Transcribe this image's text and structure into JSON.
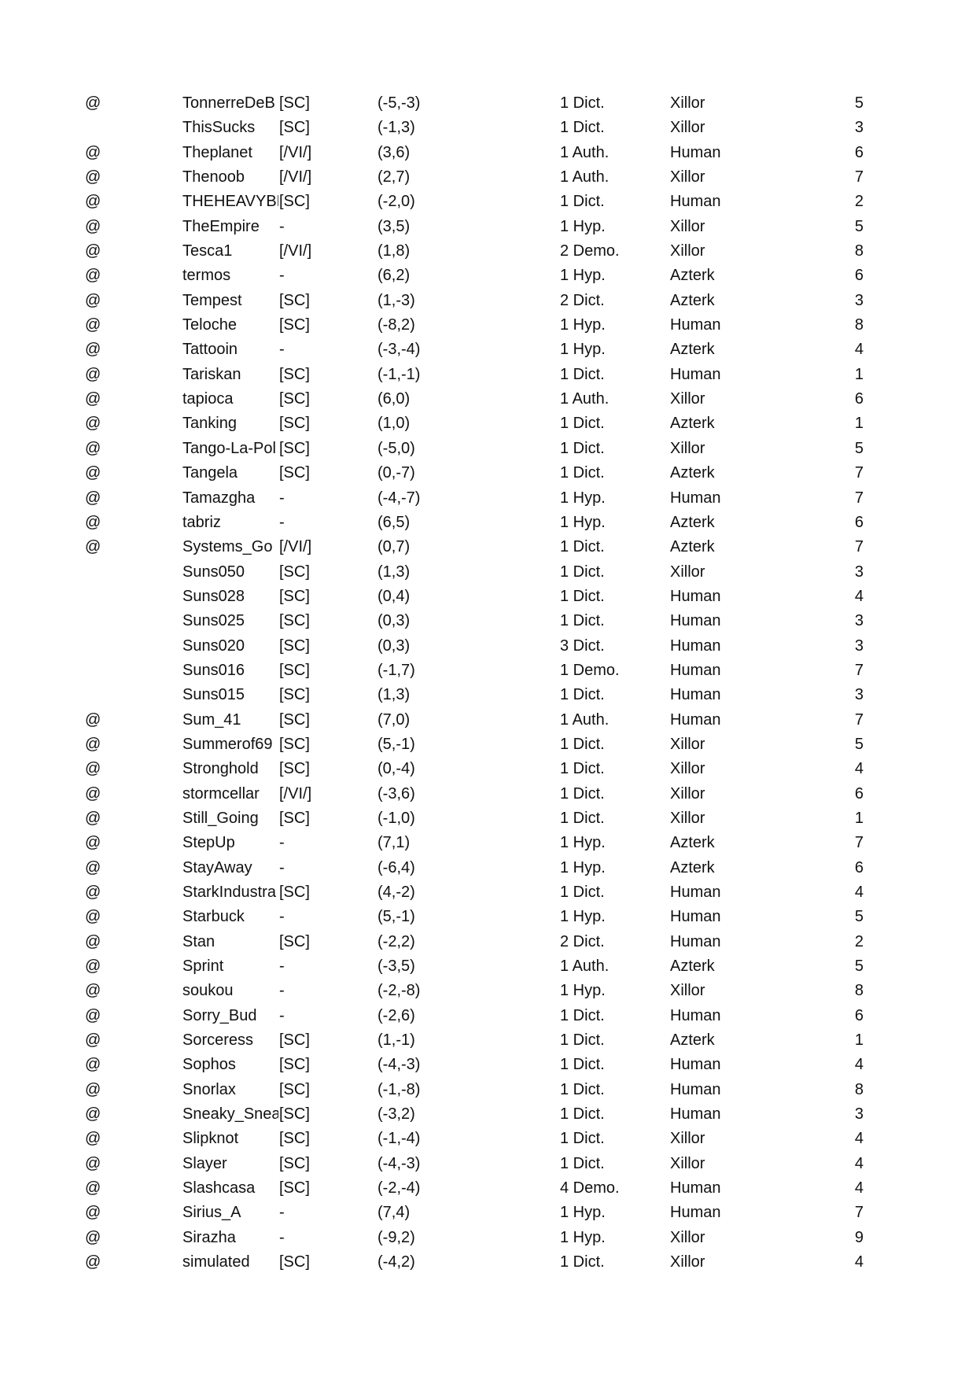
{
  "rows": [
    {
      "mark": "@",
      "name": "TonnerreDeB",
      "tag": "[SC]",
      "coord": "(-5,-3)",
      "count": "1 Dict.",
      "race": "Xillor",
      "num": "5"
    },
    {
      "mark": "",
      "name": "ThisSucks",
      "tag": "[SC]",
      "coord": "(-1,3)",
      "count": "1 Dict.",
      "race": "Xillor",
      "num": "3"
    },
    {
      "mark": "@",
      "name": "Theplanet",
      "tag": "[/VI/]",
      "coord": "(3,6)",
      "count": "1 Auth.",
      "race": "Human",
      "num": "6"
    },
    {
      "mark": "@",
      "name": "Thenoob",
      "tag": "[/VI/]",
      "coord": "(2,7)",
      "count": "1 Auth.",
      "race": "Xillor",
      "num": "7"
    },
    {
      "mark": "@",
      "name": "THEHEAVYBE",
      "tag": "[SC]",
      "coord": "(-2,0)",
      "count": "1 Dict.",
      "race": "Human",
      "num": "2"
    },
    {
      "mark": "@",
      "name": "TheEmpire",
      "tag": "-",
      "coord": "(3,5)",
      "count": "1 Hyp.",
      "race": "Xillor",
      "num": "5"
    },
    {
      "mark": "@",
      "name": "Tesca1",
      "tag": "[/VI/]",
      "coord": "(1,8)",
      "count": "2 Demo.",
      "race": "Xillor",
      "num": "8"
    },
    {
      "mark": "@",
      "name": "termos",
      "tag": "-",
      "coord": "(6,2)",
      "count": "1 Hyp.",
      "race": "Azterk",
      "num": "6"
    },
    {
      "mark": "@",
      "name": "Tempest",
      "tag": "[SC]",
      "coord": "(1,-3)",
      "count": "2 Dict.",
      "race": "Azterk",
      "num": "3"
    },
    {
      "mark": "@",
      "name": "Teloche",
      "tag": "[SC]",
      "coord": "(-8,2)",
      "count": "1 Hyp.",
      "race": "Human",
      "num": "8"
    },
    {
      "mark": "@",
      "name": "Tattooin",
      "tag": "-",
      "coord": "(-3,-4)",
      "count": "1 Hyp.",
      "race": "Azterk",
      "num": "4"
    },
    {
      "mark": "@",
      "name": "Tariskan",
      "tag": "[SC]",
      "coord": "(-1,-1)",
      "count": "1 Dict.",
      "race": "Human",
      "num": "1"
    },
    {
      "mark": "@",
      "name": "tapioca",
      "tag": "[SC]",
      "coord": "(6,0)",
      "count": "1 Auth.",
      "race": "Xillor",
      "num": "6"
    },
    {
      "mark": "@",
      "name": "Tanking",
      "tag": "[SC]",
      "coord": "(1,0)",
      "count": "1 Dict.",
      "race": "Azterk",
      "num": "1"
    },
    {
      "mark": "@",
      "name": "Tango-La-Pol",
      "tag": "[SC]",
      "coord": "(-5,0)",
      "count": "1 Dict.",
      "race": "Xillor",
      "num": "5"
    },
    {
      "mark": "@",
      "name": "Tangela",
      "tag": "[SC]",
      "coord": "(0,-7)",
      "count": "1 Dict.",
      "race": "Azterk",
      "num": "7"
    },
    {
      "mark": "@",
      "name": "Tamazgha",
      "tag": "-",
      "coord": "(-4,-7)",
      "count": "1 Hyp.",
      "race": "Human",
      "num": "7"
    },
    {
      "mark": "@",
      "name": "tabriz",
      "tag": "-",
      "coord": "(6,5)",
      "count": "1 Hyp.",
      "race": "Azterk",
      "num": "6"
    },
    {
      "mark": "@",
      "name": "Systems_Go",
      "tag": "[/VI/]",
      "coord": "(0,7)",
      "count": "1 Dict.",
      "race": "Azterk",
      "num": "7"
    },
    {
      "mark": "",
      "name": "Suns050",
      "tag": "[SC]",
      "coord": "(1,3)",
      "count": "1 Dict.",
      "race": "Xillor",
      "num": "3"
    },
    {
      "mark": "",
      "name": "Suns028",
      "tag": "[SC]",
      "coord": "(0,4)",
      "count": "1 Dict.",
      "race": "Human",
      "num": "4"
    },
    {
      "mark": "",
      "name": "Suns025",
      "tag": "[SC]",
      "coord": "(0,3)",
      "count": "1 Dict.",
      "race": "Human",
      "num": "3"
    },
    {
      "mark": "",
      "name": "Suns020",
      "tag": "[SC]",
      "coord": "(0,3)",
      "count": "3 Dict.",
      "race": "Human",
      "num": "3"
    },
    {
      "mark": "",
      "name": "Suns016",
      "tag": "[SC]",
      "coord": "(-1,7)",
      "count": "1 Demo.",
      "race": "Human",
      "num": "7"
    },
    {
      "mark": "",
      "name": "Suns015",
      "tag": "[SC]",
      "coord": "(1,3)",
      "count": "1 Dict.",
      "race": "Human",
      "num": "3"
    },
    {
      "mark": "@",
      "name": "Sum_41",
      "tag": "[SC]",
      "coord": "(7,0)",
      "count": "1 Auth.",
      "race": "Human",
      "num": "7"
    },
    {
      "mark": "@",
      "name": "Summerof69",
      "tag": "[SC]",
      "coord": "(5,-1)",
      "count": "1 Dict.",
      "race": "Xillor",
      "num": "5"
    },
    {
      "mark": "@",
      "name": "Stronghold",
      "tag": "[SC]",
      "coord": "(0,-4)",
      "count": "1 Dict.",
      "race": "Xillor",
      "num": "4"
    },
    {
      "mark": "@",
      "name": "stormcellar",
      "tag": "[/VI/]",
      "coord": "(-3,6)",
      "count": "1 Dict.",
      "race": "Xillor",
      "num": "6"
    },
    {
      "mark": "@",
      "name": "Still_Going",
      "tag": "[SC]",
      "coord": "(-1,0)",
      "count": "1 Dict.",
      "race": "Xillor",
      "num": "1"
    },
    {
      "mark": "@",
      "name": "StepUp",
      "tag": "-",
      "coord": "(7,1)",
      "count": "1 Hyp.",
      "race": "Azterk",
      "num": "7"
    },
    {
      "mark": "@",
      "name": "StayAway",
      "tag": "-",
      "coord": "(-6,4)",
      "count": "1 Hyp.",
      "race": "Azterk",
      "num": "6"
    },
    {
      "mark": "@",
      "name": "StarkIndustra",
      "tag": "[SC]",
      "coord": "(4,-2)",
      "count": "1 Dict.",
      "race": "Human",
      "num": "4"
    },
    {
      "mark": "@",
      "name": "Starbuck",
      "tag": "-",
      "coord": "(5,-1)",
      "count": "1 Hyp.",
      "race": "Human",
      "num": "5"
    },
    {
      "mark": "@",
      "name": "Stan",
      "tag": "[SC]",
      "coord": "(-2,2)",
      "count": "2 Dict.",
      "race": "Human",
      "num": "2"
    },
    {
      "mark": "@",
      "name": "Sprint",
      "tag": "-",
      "coord": "(-3,5)",
      "count": "1 Auth.",
      "race": "Azterk",
      "num": "5"
    },
    {
      "mark": "@",
      "name": "soukou",
      "tag": "-",
      "coord": "(-2,-8)",
      "count": "1 Hyp.",
      "race": "Xillor",
      "num": "8"
    },
    {
      "mark": "@",
      "name": "Sorry_Bud",
      "tag": "-",
      "coord": "(-2,6)",
      "count": "1 Dict.",
      "race": "Human",
      "num": "6"
    },
    {
      "mark": "@",
      "name": "Sorceress",
      "tag": "[SC]",
      "coord": "(1,-1)",
      "count": "1 Dict.",
      "race": "Azterk",
      "num": "1"
    },
    {
      "mark": "@",
      "name": "Sophos",
      "tag": "[SC]",
      "coord": "(-4,-3)",
      "count": "1 Dict.",
      "race": "Human",
      "num": "4"
    },
    {
      "mark": "@",
      "name": "Snorlax",
      "tag": "[SC]",
      "coord": "(-1,-8)",
      "count": "1 Dict.",
      "race": "Human",
      "num": "8"
    },
    {
      "mark": "@",
      "name": "Sneaky_Snea",
      "tag": "[SC]",
      "coord": "(-3,2)",
      "count": "1 Dict.",
      "race": "Human",
      "num": "3"
    },
    {
      "mark": "@",
      "name": "Slipknot",
      "tag": "[SC]",
      "coord": "(-1,-4)",
      "count": "1 Dict.",
      "race": "Xillor",
      "num": "4"
    },
    {
      "mark": "@",
      "name": "Slayer",
      "tag": "[SC]",
      "coord": "(-4,-3)",
      "count": "1 Dict.",
      "race": "Xillor",
      "num": "4"
    },
    {
      "mark": "@",
      "name": "Slashcasa",
      "tag": "[SC]",
      "coord": "(-2,-4)",
      "count": "4 Demo.",
      "race": "Human",
      "num": "4"
    },
    {
      "mark": "@",
      "name": "Sirius_A",
      "tag": "-",
      "coord": "(7,4)",
      "count": "1 Hyp.",
      "race": "Human",
      "num": "7"
    },
    {
      "mark": "@",
      "name": "Sirazha",
      "tag": "-",
      "coord": "(-9,2)",
      "count": "1 Hyp.",
      "race": "Xillor",
      "num": "9"
    },
    {
      "mark": "@",
      "name": "simulated",
      "tag": "[SC]",
      "coord": "(-4,2)",
      "count": "1 Dict.",
      "race": "Xillor",
      "num": "4"
    }
  ]
}
